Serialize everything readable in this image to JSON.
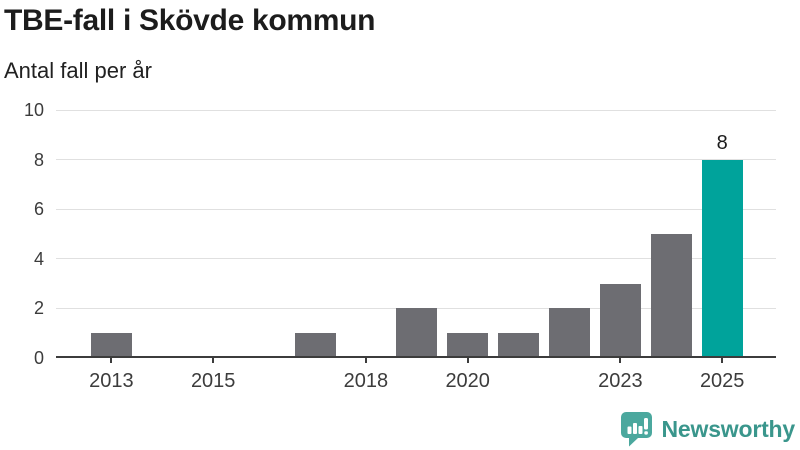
{
  "header": {
    "title": "TBE-fall i Skövde kommun",
    "subtitle": "Antal fall per år"
  },
  "chart_data": {
    "type": "bar",
    "title": "TBE-fall i Skövde kommun",
    "subtitle": "Antal fall per år",
    "ylabel": "Antal fall per år",
    "xlabel": "",
    "categories": [
      2013,
      2014,
      2015,
      2016,
      2017,
      2018,
      2019,
      2020,
      2021,
      2022,
      2023,
      2024,
      2025
    ],
    "values": [
      1,
      0,
      0,
      0,
      1,
      0,
      2,
      1,
      1,
      2,
      3,
      5,
      8
    ],
    "xticks": [
      2013,
      2015,
      2018,
      2020,
      2023,
      2025
    ],
    "yticks": [
      0,
      2,
      4,
      6,
      8,
      10
    ],
    "ylim": [
      0,
      10
    ],
    "grid": true,
    "legend": "none",
    "bar_color": "#6d6d72",
    "highlight_color": "#00a39b",
    "highlight_year": 2025,
    "data_labels": [
      {
        "year": 2025,
        "text": "8"
      }
    ]
  },
  "footer": {
    "brand": "Newsworthy",
    "logo_icon": "newsworthy-speech-bubble-bar-chart",
    "logo_color": "#4ba89e",
    "brand_text_color": "#3a968c"
  }
}
